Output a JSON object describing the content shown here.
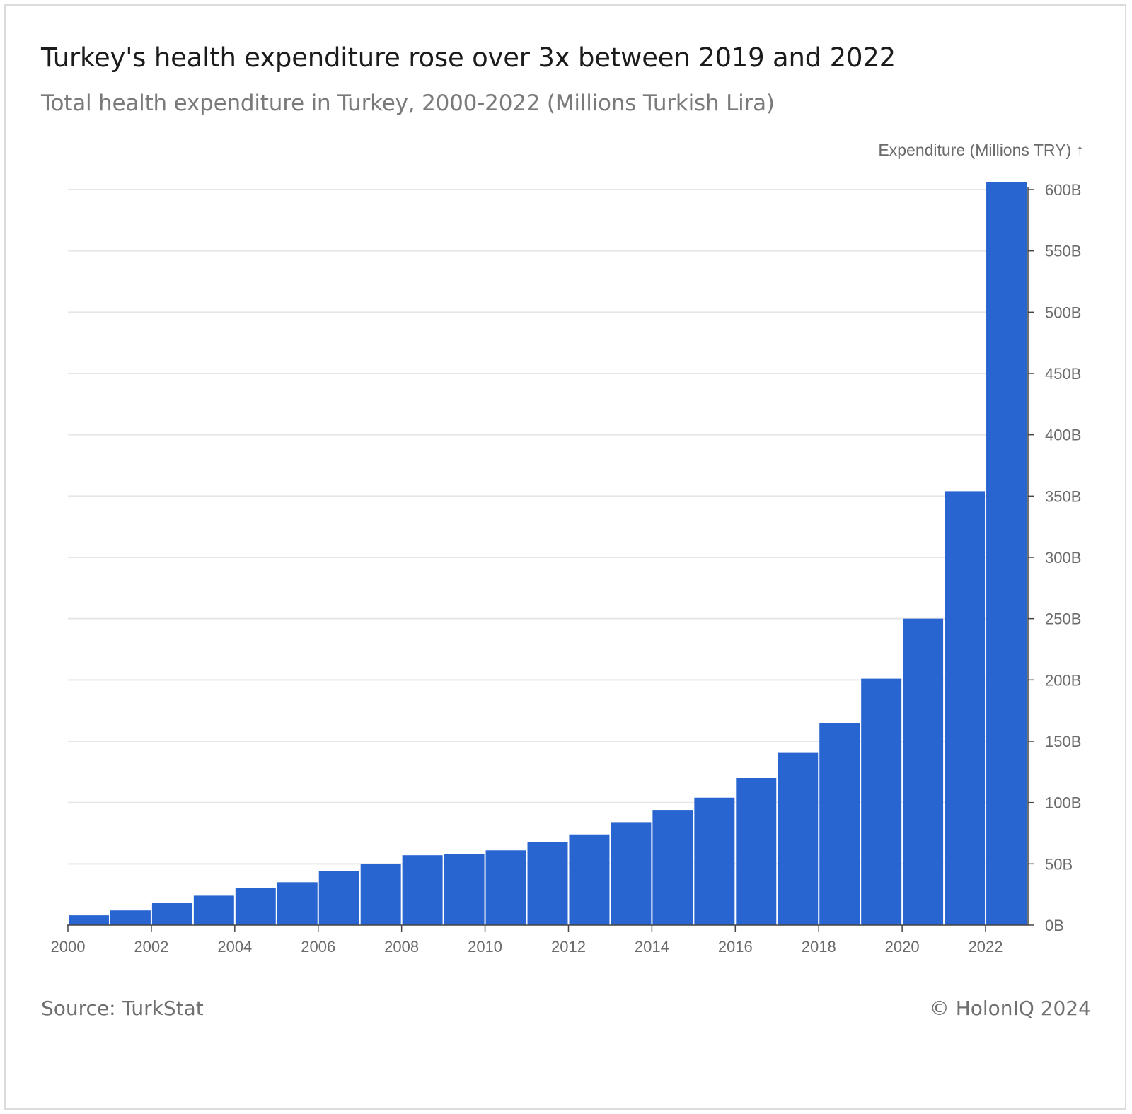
{
  "header": {
    "title": "Turkey's health expenditure rose over 3x between 2019 and 2022",
    "subtitle": "Total health expenditure in Turkey, 2000-2022 (Millions Turkish Lira)"
  },
  "footer": {
    "source": "Source: TurkStat",
    "credit": "© HolonIQ 2024"
  },
  "colors": {
    "bar": "#2965d0",
    "grid": "#e6e6e6",
    "axis": "#444444",
    "tick_text": "#6b6b6b"
  },
  "chart_data": {
    "type": "bar",
    "title": "Turkey's health expenditure rose over 3x between 2019 and 2022",
    "subtitle": "Total health expenditure in Turkey, 2000-2022 (Millions Turkish Lira)",
    "ylabel": "Expenditure (Millions TRY) ↑",
    "xlabel": "",
    "y_axis_position": "right",
    "grid": true,
    "categories": [
      "2000",
      "2001",
      "2002",
      "2003",
      "2004",
      "2005",
      "2006",
      "2007",
      "2008",
      "2009",
      "2010",
      "2011",
      "2012",
      "2013",
      "2014",
      "2015",
      "2016",
      "2017",
      "2018",
      "2019",
      "2020",
      "2021",
      "2022"
    ],
    "values": [
      8,
      12,
      18,
      24,
      30,
      35,
      44,
      50,
      57,
      58,
      61,
      68,
      74,
      84,
      94,
      104,
      120,
      141,
      165,
      201,
      250,
      354,
      606
    ],
    "value_unit": "B",
    "ylim": [
      0,
      600
    ],
    "yticks": [
      0,
      50,
      100,
      150,
      200,
      250,
      300,
      350,
      400,
      450,
      500,
      550,
      600
    ],
    "ytick_labels": [
      "0B",
      "50B",
      "100B",
      "150B",
      "200B",
      "250B",
      "300B",
      "350B",
      "400B",
      "450B",
      "500B",
      "550B",
      "600B"
    ],
    "xticks": [
      "2000",
      "2002",
      "2004",
      "2006",
      "2008",
      "2010",
      "2012",
      "2014",
      "2016",
      "2018",
      "2020",
      "2022"
    ]
  }
}
